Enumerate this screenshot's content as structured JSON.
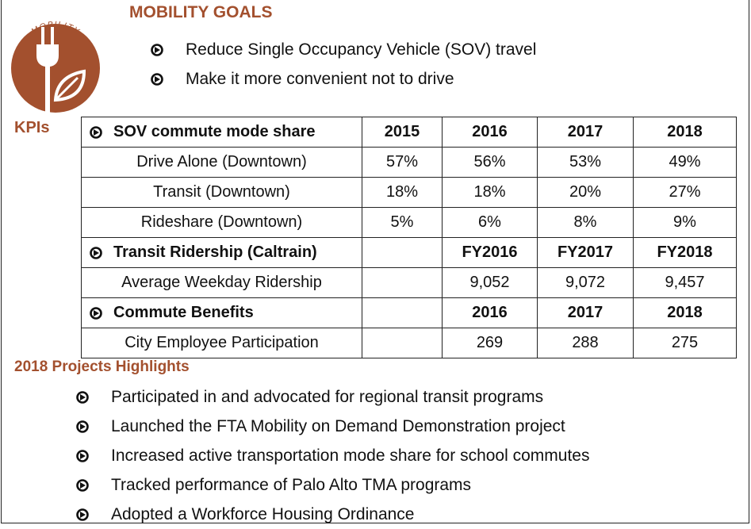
{
  "icon": {
    "label": "MOBILITY"
  },
  "goals": {
    "title": "MOBILITY GOALS",
    "items": [
      "Reduce Single Occupancy Vehicle (SOV) travel",
      "Make it more convenient not to drive"
    ]
  },
  "kpi_label": "KPIs",
  "table": {
    "sections": [
      {
        "heading": "SOV commute mode share",
        "columns": [
          "2015",
          "2016",
          "2017",
          "2018"
        ],
        "rows": [
          {
            "label": "Drive Alone (Downtown)",
            "values": [
              "57%",
              "56%",
              "53%",
              "49%"
            ]
          },
          {
            "label": "Transit (Downtown)",
            "values": [
              "18%",
              "18%",
              "20%",
              "27%"
            ]
          },
          {
            "label": "Rideshare (Downtown)",
            "values": [
              "5%",
              "6%",
              "8%",
              "9%"
            ]
          }
        ]
      },
      {
        "heading": "Transit Ridership (Caltrain)",
        "columns": [
          "FY2016",
          "FY2017",
          "FY2018"
        ],
        "rows": [
          {
            "label": "Average Weekday Ridership",
            "values": [
              "9,052",
              "9,072",
              "9,457"
            ]
          }
        ]
      },
      {
        "heading": "Commute Benefits",
        "columns": [
          "2016",
          "2017",
          "2018"
        ],
        "rows": [
          {
            "label": "City Employee Participation",
            "values": [
              "269",
              "288",
              "275"
            ]
          }
        ]
      }
    ]
  },
  "highlights": {
    "title": "2018 Projects Highlights",
    "items": [
      "Participated in and advocated for regional transit programs",
      "Launched the FTA Mobility on Demand Demonstration project",
      "Increased active transportation mode share for school commutes",
      "Tracked performance of Palo Alto TMA programs",
      "Adopted a Workforce Housing Ordinance"
    ]
  }
}
